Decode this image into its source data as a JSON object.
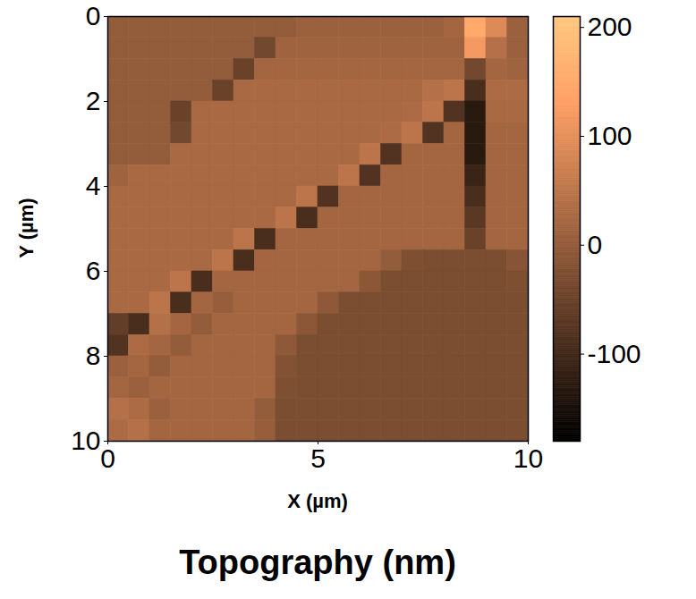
{
  "chart_data": {
    "type": "heatmap",
    "title": "Topography (nm)",
    "x_label": "X (µm)",
    "y_label": "Y (µm)",
    "xlim": [
      0,
      10
    ],
    "ylim": [
      0,
      10
    ],
    "xticks": [
      0,
      5,
      10
    ],
    "yticks": [
      0,
      2,
      4,
      6,
      8,
      10
    ],
    "color_range": [
      -180,
      210
    ],
    "color_ticks": [
      -100,
      0,
      100,
      200
    ],
    "cells": [
      [
        0,
        0,
        0,
        0,
        0,
        0,
        0,
        0,
        0,
        10,
        10,
        10,
        10,
        10,
        10,
        10,
        20,
        150,
        90,
        10
      ],
      [
        0,
        0,
        0,
        0,
        0,
        0,
        0,
        -40,
        15,
        15,
        15,
        15,
        15,
        15,
        15,
        15,
        15,
        120,
        40,
        10
      ],
      [
        0,
        0,
        0,
        0,
        0,
        0,
        -50,
        20,
        20,
        20,
        20,
        20,
        20,
        20,
        20,
        20,
        20,
        -40,
        20,
        15
      ],
      [
        0,
        0,
        0,
        0,
        0,
        -50,
        25,
        25,
        25,
        25,
        25,
        25,
        25,
        25,
        25,
        40,
        50,
        -90,
        30,
        30
      ],
      [
        0,
        0,
        0,
        -50,
        25,
        25,
        25,
        25,
        25,
        25,
        25,
        25,
        25,
        25,
        30,
        50,
        -80,
        -130,
        25,
        25
      ],
      [
        0,
        0,
        0,
        -40,
        25,
        25,
        25,
        25,
        25,
        25,
        25,
        25,
        25,
        30,
        50,
        -80,
        20,
        -130,
        20,
        20
      ],
      [
        0,
        0,
        0,
        25,
        25,
        25,
        25,
        25,
        25,
        25,
        25,
        25,
        50,
        -80,
        20,
        20,
        20,
        -130,
        20,
        20
      ],
      [
        15,
        25,
        25,
        25,
        25,
        25,
        25,
        25,
        25,
        25,
        25,
        50,
        -80,
        20,
        20,
        20,
        20,
        -110,
        20,
        20
      ],
      [
        25,
        25,
        25,
        25,
        25,
        25,
        25,
        25,
        25,
        50,
        -80,
        20,
        20,
        20,
        20,
        20,
        20,
        -90,
        20,
        20
      ],
      [
        25,
        25,
        25,
        25,
        25,
        25,
        25,
        25,
        50,
        -90,
        20,
        20,
        20,
        20,
        20,
        20,
        20,
        -70,
        20,
        20
      ],
      [
        25,
        25,
        25,
        25,
        25,
        25,
        50,
        -90,
        20,
        20,
        20,
        20,
        20,
        20,
        20,
        20,
        20,
        -50,
        20,
        20
      ],
      [
        25,
        25,
        25,
        25,
        25,
        50,
        -90,
        20,
        20,
        20,
        20,
        20,
        20,
        0,
        -25,
        -30,
        -30,
        -30,
        -30,
        -15
      ],
      [
        25,
        25,
        25,
        50,
        -90,
        20,
        20,
        20,
        20,
        20,
        20,
        20,
        -10,
        -30,
        -30,
        -30,
        -30,
        -30,
        -30,
        -25
      ],
      [
        25,
        25,
        50,
        -90,
        20,
        5,
        20,
        20,
        20,
        20,
        -5,
        -30,
        -30,
        -30,
        -30,
        -30,
        -30,
        -30,
        -30,
        -30
      ],
      [
        -60,
        -90,
        40,
        20,
        0,
        20,
        20,
        20,
        20,
        -10,
        -30,
        -30,
        -30,
        -30,
        -30,
        -30,
        -30,
        -30,
        -30,
        -30
      ],
      [
        -80,
        30,
        20,
        0,
        20,
        20,
        20,
        20,
        -5,
        -30,
        -30,
        -30,
        -30,
        -30,
        -30,
        -30,
        -30,
        -30,
        -30,
        -30
      ],
      [
        10,
        20,
        0,
        20,
        20,
        20,
        20,
        20,
        -20,
        -30,
        -30,
        -30,
        -30,
        -30,
        -30,
        -30,
        -30,
        -30,
        -30,
        -30
      ],
      [
        20,
        10,
        20,
        20,
        20,
        20,
        20,
        20,
        -25,
        -30,
        -30,
        -30,
        -30,
        -30,
        -30,
        -30,
        -30,
        -30,
        -30,
        -30
      ],
      [
        40,
        30,
        10,
        20,
        20,
        20,
        20,
        0,
        -30,
        -30,
        -30,
        -30,
        -30,
        -30,
        -30,
        -30,
        -30,
        -30,
        -30,
        -30
      ],
      [
        30,
        40,
        20,
        20,
        20,
        20,
        20,
        5,
        -30,
        -30,
        -30,
        -30,
        -30,
        -30,
        -30,
        -30,
        -30,
        -30,
        -30,
        -30
      ]
    ]
  }
}
